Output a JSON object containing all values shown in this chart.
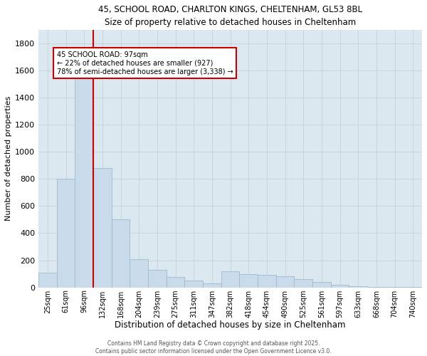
{
  "title1": "45, SCHOOL ROAD, CHARLTON KINGS, CHELTENHAM, GL53 8BL",
  "title2": "Size of property relative to detached houses in Cheltenham",
  "xlabel": "Distribution of detached houses by size in Cheltenham",
  "ylabel": "Number of detached properties",
  "categories": [
    "25sqm",
    "61sqm",
    "96sqm",
    "132sqm",
    "168sqm",
    "204sqm",
    "239sqm",
    "275sqm",
    "311sqm",
    "347sqm",
    "382sqm",
    "418sqm",
    "454sqm",
    "490sqm",
    "525sqm",
    "561sqm",
    "597sqm",
    "633sqm",
    "668sqm",
    "704sqm",
    "740sqm"
  ],
  "values": [
    110,
    800,
    1650,
    880,
    500,
    210,
    130,
    75,
    50,
    30,
    120,
    100,
    90,
    80,
    60,
    40,
    20,
    10,
    5,
    3,
    2
  ],
  "bar_color": "#c9daea",
  "bar_edge_color": "#9bbcce",
  "vline_color": "#cc0000",
  "annotation_line1": "45 SCHOOL ROAD: 97sqm",
  "annotation_line2": "← 22% of detached houses are smaller (927)",
  "annotation_line3": "78% of semi-detached houses are larger (3,338) →",
  "annotation_box_color": "#cc0000",
  "annotation_bg_color": "white",
  "ylim": [
    0,
    1900
  ],
  "yticks": [
    0,
    200,
    400,
    600,
    800,
    1000,
    1200,
    1400,
    1600,
    1800
  ],
  "grid_color": "#c8d0d8",
  "background_color": "#dce8f0",
  "footer1": "Contains HM Land Registry data © Crown copyright and database right 2025.",
  "footer2": "Contains public sector information licensed under the Open Government Licence v3.0."
}
